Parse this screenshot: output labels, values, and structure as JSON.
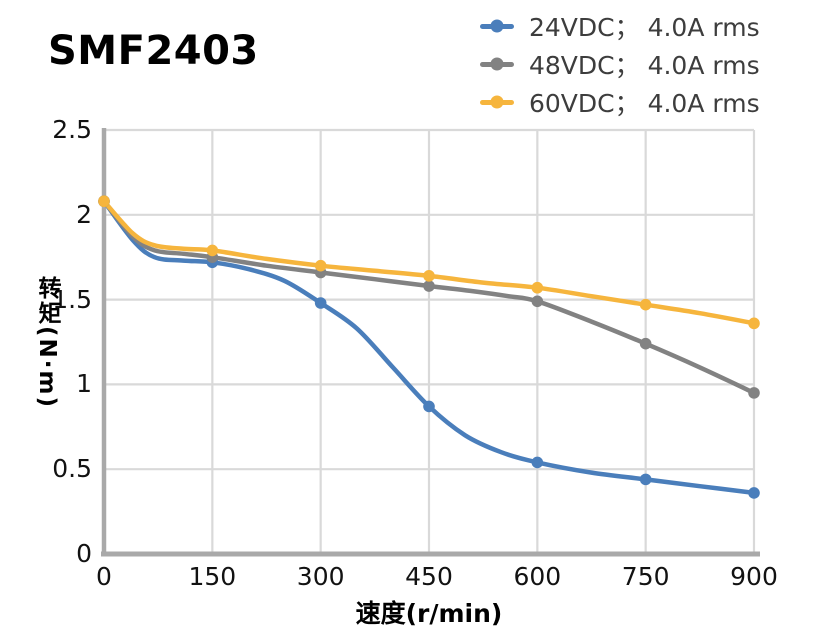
{
  "title": "SMF2403",
  "chart_data": {
    "type": "line",
    "title": "SMF2403",
    "xlabel": "速度(r/min)",
    "ylabel": "转矩(N·m)",
    "xlim": [
      0,
      900
    ],
    "ylim": [
      0,
      2.5
    ],
    "x_ticks": [
      0,
      150,
      300,
      450,
      600,
      750,
      900
    ],
    "x_tick_labels": [
      "0",
      "150",
      "300",
      "450",
      "600",
      "750",
      "900"
    ],
    "y_ticks": [
      0,
      0.5,
      1,
      1.5,
      2,
      2.5
    ],
    "y_tick_labels": [
      "0",
      "0.5",
      "1",
      "1.5",
      "2",
      "2.5"
    ],
    "grid": true,
    "legend_position": "top-right",
    "x": [
      0,
      150,
      300,
      450,
      600,
      750,
      900
    ],
    "series": [
      {
        "name": "24VDC； 4.0A rms",
        "color": "#4a7ebb",
        "values": [
          2.08,
          1.72,
          1.48,
          0.87,
          0.54,
          0.44,
          0.36
        ],
        "curve_trace": {
          "x": [
            0,
            40,
            70,
            110,
            150,
            200,
            250,
            300,
            350,
            400,
            450,
            500,
            550,
            600,
            675,
            750,
            825,
            900
          ],
          "y": [
            2.08,
            1.85,
            1.75,
            1.73,
            1.72,
            1.68,
            1.61,
            1.48,
            1.33,
            1.1,
            0.87,
            0.7,
            0.6,
            0.54,
            0.48,
            0.44,
            0.4,
            0.36
          ]
        }
      },
      {
        "name": "48VDC； 4.0A rms",
        "color": "#828282",
        "values": [
          2.08,
          1.75,
          1.66,
          1.58,
          1.49,
          1.24,
          0.95
        ],
        "curve_trace": {
          "x": [
            0,
            40,
            70,
            110,
            150,
            225,
            300,
            375,
            450,
            510,
            560,
            600,
            675,
            750,
            825,
            900
          ],
          "y": [
            2.08,
            1.87,
            1.79,
            1.77,
            1.75,
            1.7,
            1.66,
            1.62,
            1.58,
            1.55,
            1.52,
            1.49,
            1.37,
            1.24,
            1.1,
            0.95
          ]
        }
      },
      {
        "name": "60VDC； 4.0A rms",
        "color": "#f6b53d",
        "values": [
          2.08,
          1.79,
          1.7,
          1.64,
          1.57,
          1.47,
          1.36
        ],
        "curve_trace": {
          "x": [
            0,
            40,
            70,
            110,
            150,
            225,
            300,
            375,
            450,
            525,
            600,
            675,
            750,
            825,
            900
          ],
          "y": [
            2.08,
            1.89,
            1.82,
            1.8,
            1.79,
            1.74,
            1.7,
            1.67,
            1.64,
            1.6,
            1.57,
            1.52,
            1.47,
            1.42,
            1.36
          ]
        }
      }
    ],
    "colors": {
      "grid": "#d9d9d9",
      "axis": "#a9a9a9",
      "tick_text": "#121212",
      "legend_text": "#3d3d3d",
      "title_text": "#000000",
      "background": "#ffffff"
    }
  }
}
